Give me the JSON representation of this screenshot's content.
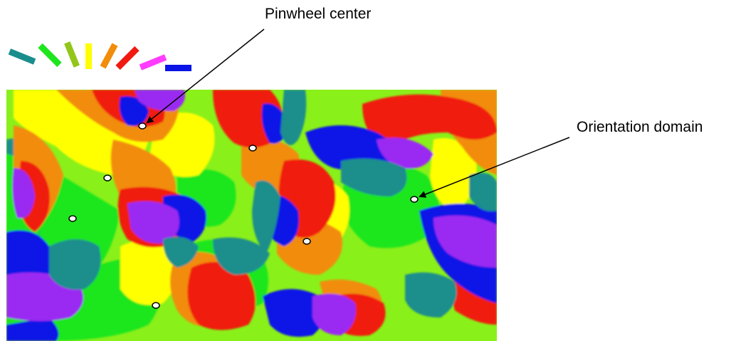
{
  "labels": {
    "pinwheel_center": "Pinwheel center",
    "orientation_domain": "Orientation domain"
  },
  "colors": {
    "teal": "#1a8e8c",
    "green": "#1ee61e",
    "olive": "#92c61a",
    "yellow": "#ffff00",
    "orange": "#f28c0a",
    "red": "#f01a10",
    "magenta": "#ff3cff",
    "blue": "#0a14e6",
    "lime": "#8af01a",
    "purple": "#9a2cf2"
  },
  "orientation_key": [
    {
      "color": "teal",
      "angle_deg": 157.5
    },
    {
      "color": "green",
      "angle_deg": 135
    },
    {
      "color": "olive",
      "angle_deg": 112.5
    },
    {
      "color": "yellow",
      "angle_deg": 90
    },
    {
      "color": "orange",
      "angle_deg": 67.5
    },
    {
      "color": "red",
      "angle_deg": 45
    },
    {
      "color": "magenta",
      "angle_deg": 22.5
    },
    {
      "color": "blue",
      "angle_deg": 0
    }
  ]
}
